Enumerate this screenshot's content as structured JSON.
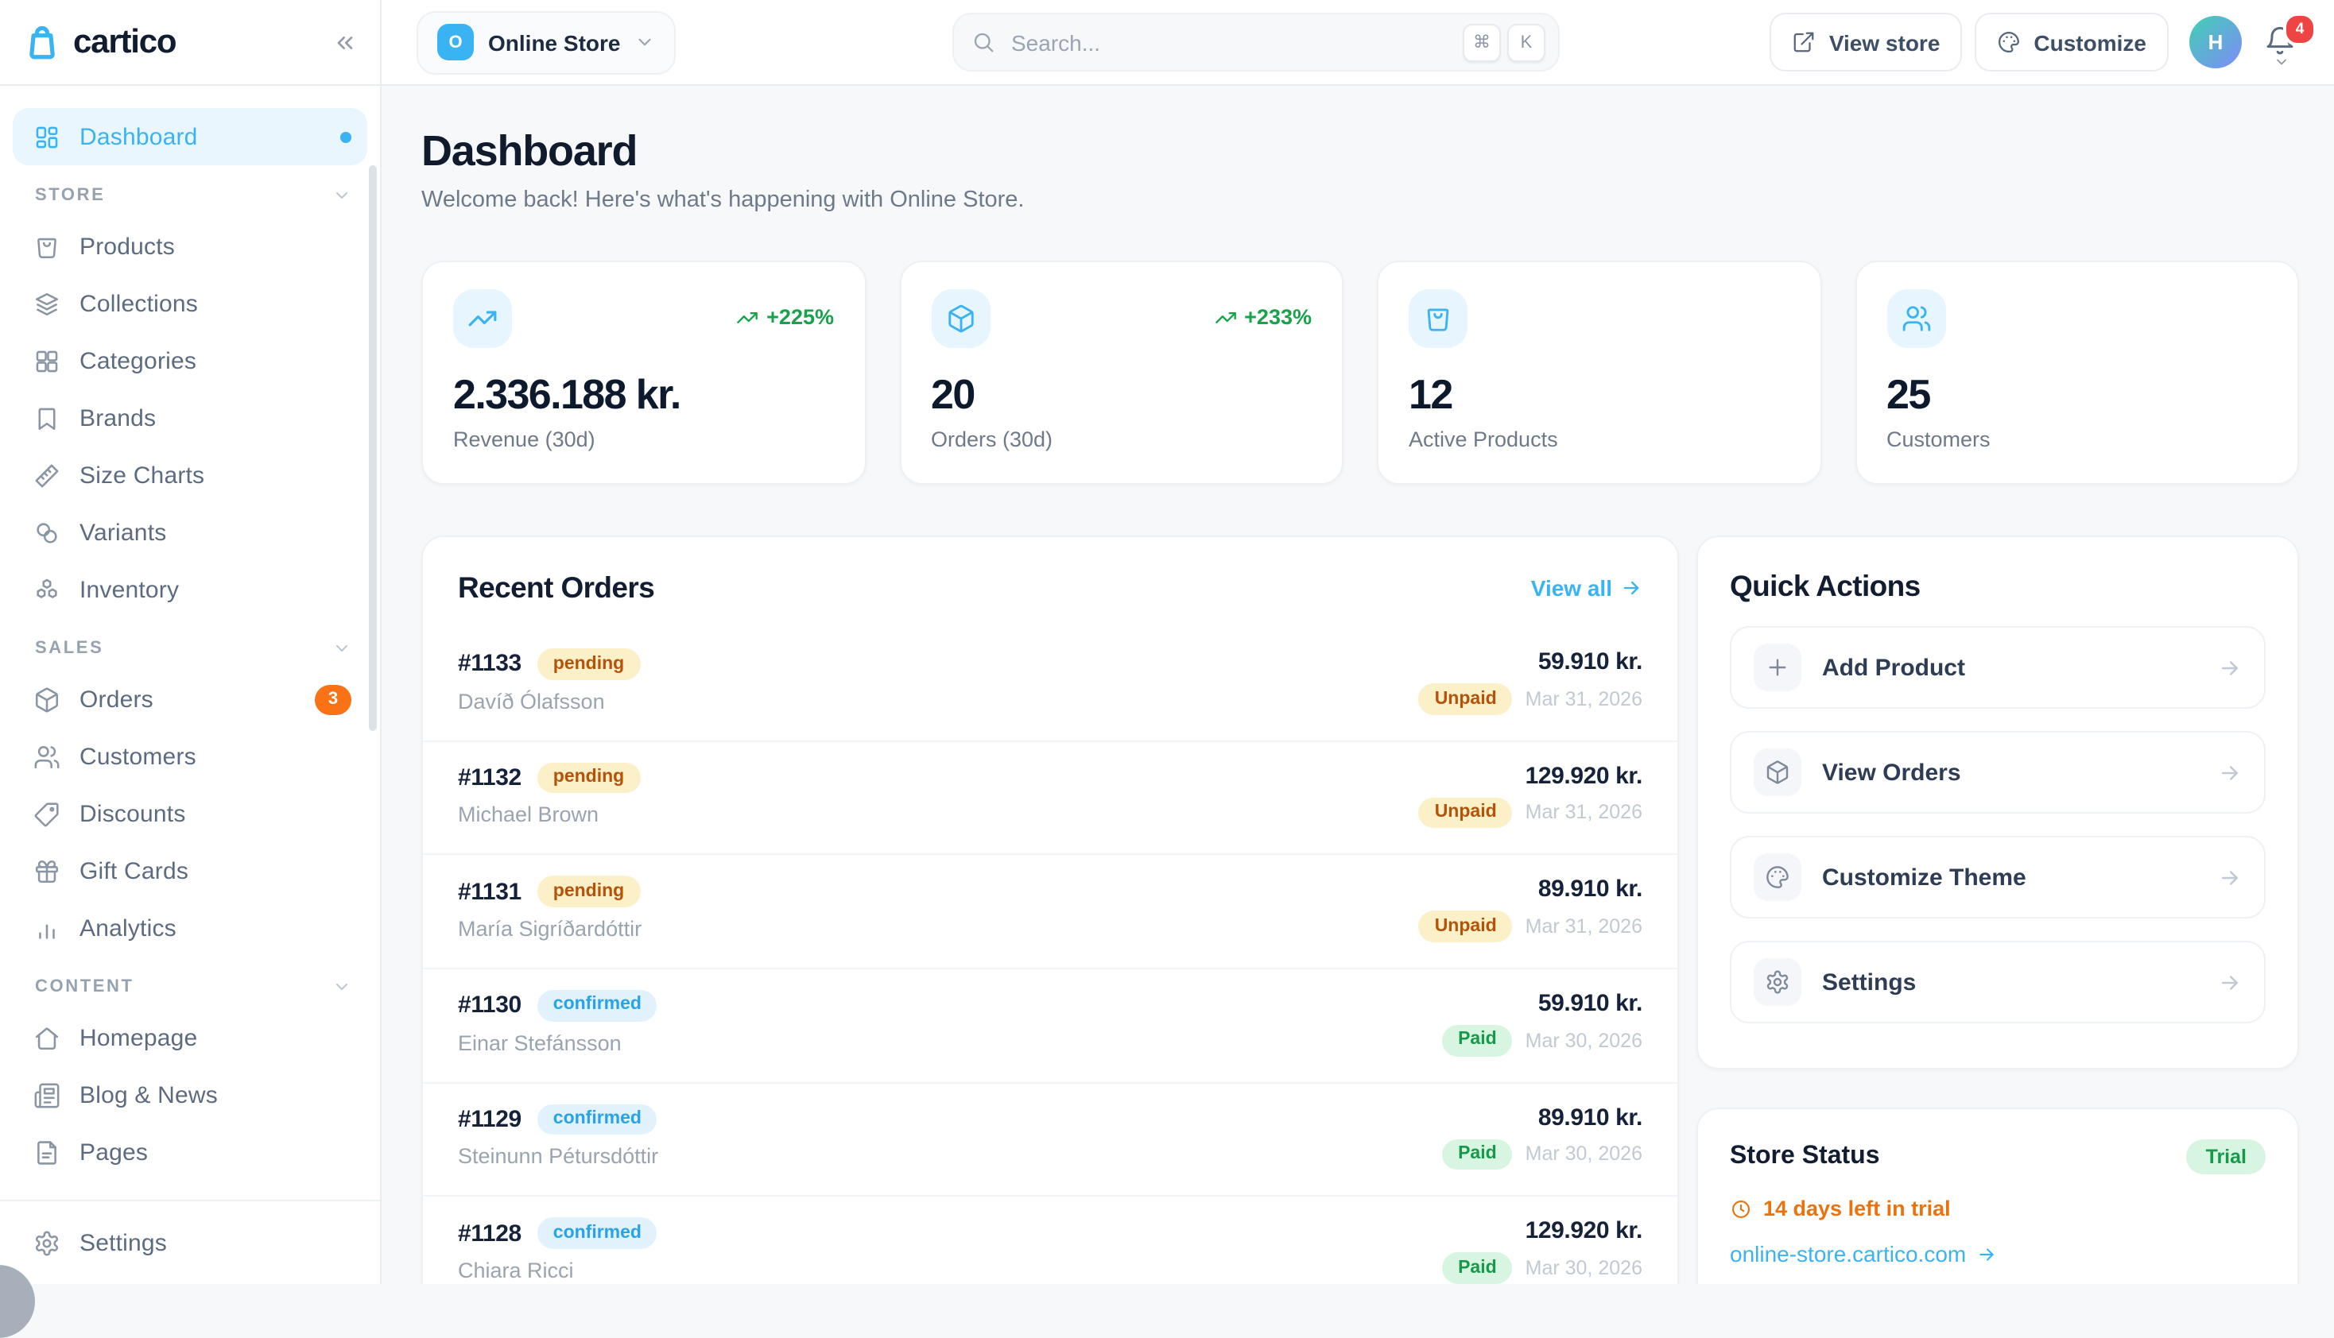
{
  "colors": {
    "accent": "#3ab3f2",
    "ink": "#111c30",
    "muted": "#6e7a8a",
    "green": "#16a34a",
    "orange": "#f97316",
    "warn": "#e9730f",
    "red": "#ef4444",
    "amber_bg": "#fcf0c8",
    "amber_text": "#b45309",
    "blue_bg": "#e2f2fd",
    "blue_text": "#2aa2e9",
    "green_bg": "#d8f5e1",
    "green_text": "#17994a"
  },
  "brand": {
    "name": "cartico"
  },
  "topbar": {
    "store_switcher": {
      "label": "Online Store",
      "initial": "O"
    },
    "search": {
      "placeholder": "Search...",
      "kbd_cmd": "⌘",
      "kbd_k": "K"
    },
    "view_store": "View store",
    "customize": "Customize",
    "avatar_initial": "H",
    "notification_count": "4"
  },
  "sidebar": {
    "dashboard": {
      "label": "Dashboard",
      "icon": "dashboard-grid-icon"
    },
    "sections": [
      {
        "label": "STORE",
        "items": [
          {
            "label": "Products",
            "icon": "shopping-bag-icon"
          },
          {
            "label": "Collections",
            "icon": "layers-icon"
          },
          {
            "label": "Categories",
            "icon": "grid-icon"
          },
          {
            "label": "Brands",
            "icon": "bookmark-icon"
          },
          {
            "label": "Size Charts",
            "icon": "ruler-icon"
          },
          {
            "label": "Variants",
            "icon": "variants-circles-icon"
          },
          {
            "label": "Inventory",
            "icon": "boxes-icon"
          }
        ]
      },
      {
        "label": "SALES",
        "items": [
          {
            "label": "Orders",
            "icon": "package-icon",
            "badge": "3"
          },
          {
            "label": "Customers",
            "icon": "users-icon"
          },
          {
            "label": "Discounts",
            "icon": "tag-icon"
          },
          {
            "label": "Gift Cards",
            "icon": "gift-icon"
          },
          {
            "label": "Analytics",
            "icon": "bar-chart-icon"
          }
        ]
      },
      {
        "label": "CONTENT",
        "items": [
          {
            "label": "Homepage",
            "icon": "home-icon"
          },
          {
            "label": "Blog & News",
            "icon": "newspaper-icon"
          },
          {
            "label": "Pages",
            "icon": "file-icon"
          }
        ]
      }
    ],
    "settings": {
      "label": "Settings",
      "icon": "gear-icon"
    }
  },
  "page": {
    "title": "Dashboard",
    "subtitle": "Welcome back! Here's what's happening with Online Store."
  },
  "stats": [
    {
      "value": "2.336.188 kr.",
      "label": "Revenue (30d)",
      "trend": "+225%",
      "icon": "trending-up-icon"
    },
    {
      "value": "20",
      "label": "Orders (30d)",
      "trend": "+233%",
      "icon": "package-icon"
    },
    {
      "value": "12",
      "label": "Active Products",
      "icon": "shopping-bag-icon"
    },
    {
      "value": "25",
      "label": "Customers",
      "icon": "users-icon"
    }
  ],
  "recent_orders": {
    "title": "Recent Orders",
    "view_all": "View all",
    "orders": [
      {
        "number": "#1133",
        "status": "pending",
        "customer": "Davíð Ólafsson",
        "amount": "59.910 kr.",
        "payment": "Unpaid",
        "date": "Mar 31, 2026"
      },
      {
        "number": "#1132",
        "status": "pending",
        "customer": "Michael Brown",
        "amount": "129.920 kr.",
        "payment": "Unpaid",
        "date": "Mar 31, 2026"
      },
      {
        "number": "#1131",
        "status": "pending",
        "customer": "María Sigríðardóttir",
        "amount": "89.910 kr.",
        "payment": "Unpaid",
        "date": "Mar 31, 2026"
      },
      {
        "number": "#1130",
        "status": "confirmed",
        "customer": "Einar Stefánsson",
        "amount": "59.910 kr.",
        "payment": "Paid",
        "date": "Mar 30, 2026"
      },
      {
        "number": "#1129",
        "status": "confirmed",
        "customer": "Steinunn Pétursdóttir",
        "amount": "89.910 kr.",
        "payment": "Paid",
        "date": "Mar 30, 2026"
      },
      {
        "number": "#1128",
        "status": "confirmed",
        "customer": "Chiara Ricci",
        "amount": "129.920 kr.",
        "payment": "Paid",
        "date": "Mar 30, 2026"
      }
    ]
  },
  "quick_actions": {
    "title": "Quick Actions",
    "actions": [
      {
        "label": "Add Product",
        "icon": "plus-icon"
      },
      {
        "label": "View Orders",
        "icon": "package-icon"
      },
      {
        "label": "Customize Theme",
        "icon": "palette-icon"
      },
      {
        "label": "Settings",
        "icon": "gear-icon"
      }
    ]
  },
  "store_status": {
    "title": "Store Status",
    "badge": "Trial",
    "trial_info": "14 days left in trial",
    "domain": "online-store.cartico.com"
  }
}
